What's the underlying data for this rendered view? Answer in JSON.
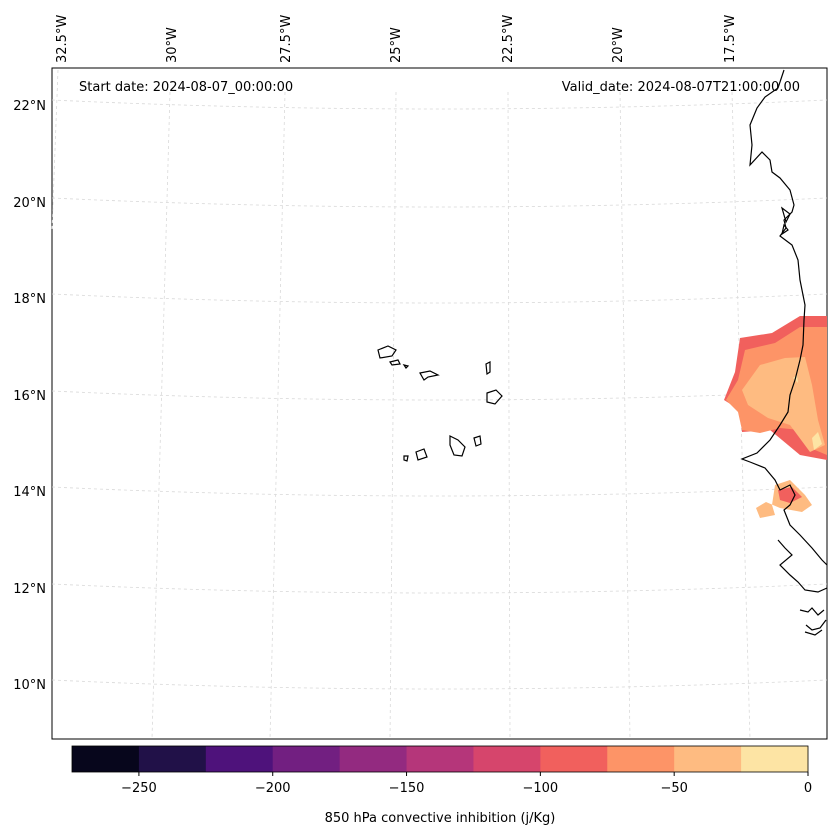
{
  "map": {
    "annotations": {
      "start": "Start date: 2024-08-07_00:00:00",
      "valid": "Valid_date: 2024-08-07T21:00:00.00"
    },
    "lon_ticks": [
      "32.5°W",
      "30°W",
      "27.5°W",
      "25°W",
      "22.5°W",
      "20°W",
      "17.5°W"
    ],
    "lat_ticks": [
      "22°N",
      "20°N",
      "18°N",
      "16°N",
      "14°N",
      "12°N",
      "10°N"
    ]
  },
  "colorbar": {
    "label": "850 hPa convective inhibition (j/Kg)",
    "ticks": [
      "−250",
      "−200",
      "−150",
      "−100",
      "−50",
      "0"
    ],
    "levels": [
      -275,
      -250,
      -225,
      -200,
      -175,
      -150,
      -125,
      -100,
      -75,
      -50,
      -25,
      0
    ],
    "colors": [
      "#07061c",
      "#211148",
      "#4e127b",
      "#721f81",
      "#932a80",
      "#b5367a",
      "#d6456c",
      "#f1605d",
      "#fd9467",
      "#febb81",
      "#fde4a4"
    ]
  }
}
